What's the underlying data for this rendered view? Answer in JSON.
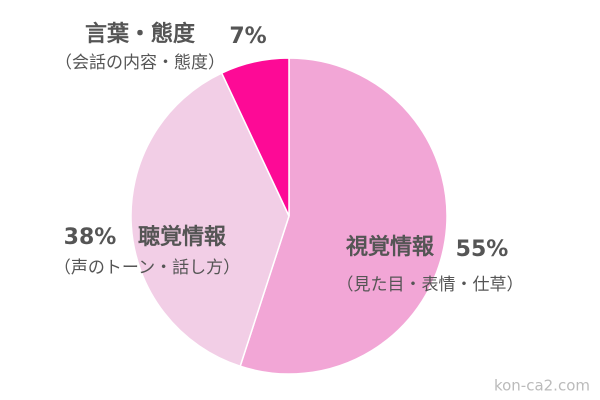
{
  "chart_data": {
    "type": "pie",
    "categories": [
      "視覚情報",
      "聴覚情報",
      "言葉・態度"
    ],
    "sublabels": [
      "（見た目・表情・仕草）",
      "（声のトーン・話し方）",
      "（会話の内容・態度）"
    ],
    "values": [
      55,
      38,
      7
    ],
    "value_labels": [
      "55%",
      "38%",
      "7%"
    ],
    "colors": [
      "#f2a6d6",
      "#f2cee6",
      "#fd0a96"
    ]
  },
  "watermark": "kon-ca2.com"
}
